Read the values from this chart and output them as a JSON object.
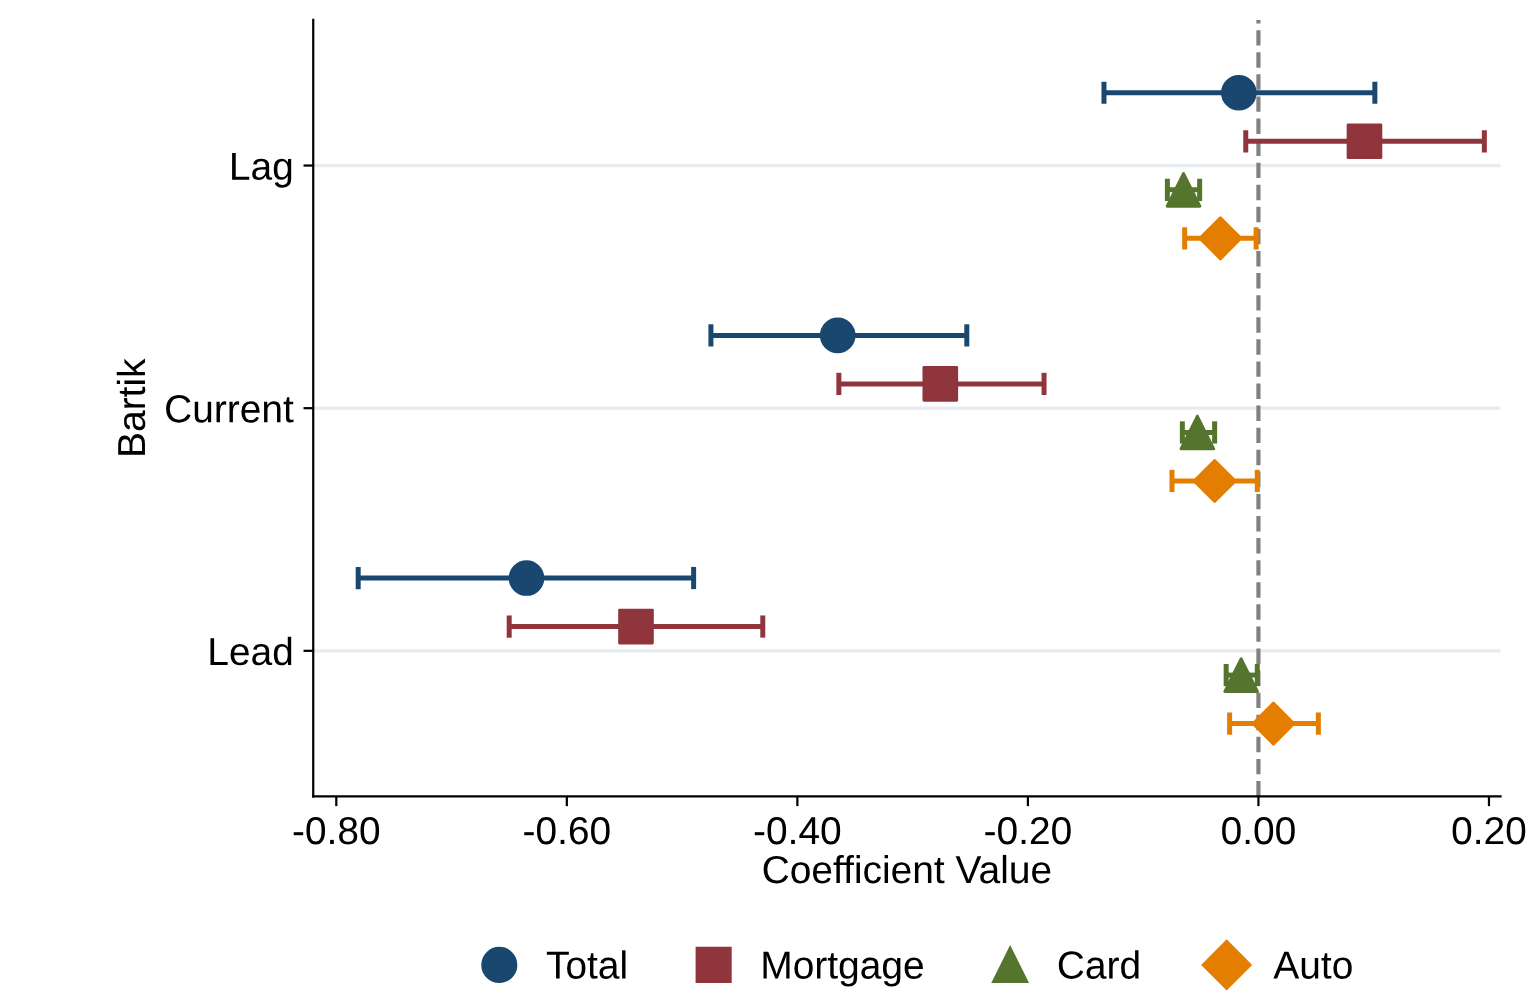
{
  "chart_data": {
    "type": "scatter",
    "orientation": "horizontal",
    "xlabel": "Coefficient Value",
    "ylabel": "Bartik",
    "categories": [
      "Lag",
      "Current",
      "Lead"
    ],
    "xlim": [
      -0.82,
      0.21
    ],
    "xticks": [
      {
        "value": -0.8,
        "label": "-0.80"
      },
      {
        "value": -0.6,
        "label": "-0.60"
      },
      {
        "value": -0.4,
        "label": "-0.40"
      },
      {
        "value": -0.2,
        "label": "-0.20"
      },
      {
        "value": 0,
        "label": "0.00"
      },
      {
        "value": 0.2,
        "label": "0.20"
      }
    ],
    "grid": "y",
    "legend": "bottom",
    "ref_lines": [
      {
        "axis": "x",
        "value": 0,
        "color": "#808080",
        "line_style": "dashed"
      }
    ],
    "series": [
      {
        "name": "Total",
        "color": "#1a476f",
        "marker": "circle",
        "values": [
          -0.017,
          -0.365,
          -0.635
        ],
        "errors": [
          [
            -0.134,
            0.101
          ],
          [
            -0.475,
            -0.253
          ],
          [
            -0.781,
            -0.49
          ]
        ]
      },
      {
        "name": "Mortgage",
        "color": "#90353b",
        "marker": "square",
        "values": [
          0.092,
          -0.276,
          -0.54
        ],
        "errors": [
          [
            -0.011,
            0.196
          ],
          [
            -0.364,
            -0.186
          ],
          [
            -0.65,
            -0.43
          ]
        ]
      },
      {
        "name": "Card",
        "color": "#55752f",
        "marker": "triangle",
        "values": [
          -0.065,
          -0.053,
          -0.015
        ],
        "errors": [
          [
            -0.079,
            -0.051
          ],
          [
            -0.066,
            -0.038
          ],
          [
            -0.028,
            -0.001
          ]
        ]
      },
      {
        "name": "Auto",
        "color": "#e37e00",
        "marker": "diamond",
        "values": [
          -0.033,
          -0.038,
          0.013
        ],
        "errors": [
          [
            -0.064,
            -0.002
          ],
          [
            -0.075,
            -0.001
          ],
          [
            -0.025,
            0.052
          ]
        ]
      }
    ]
  }
}
